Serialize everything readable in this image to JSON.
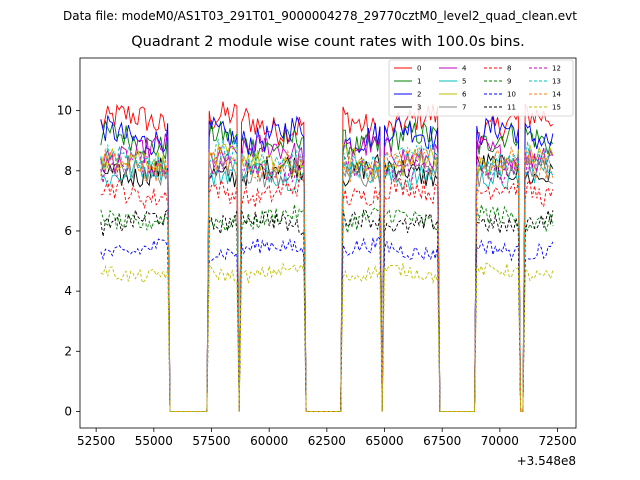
{
  "header": {
    "data_file": "Data file: modeM0/AS1T03_291T01_9000004278_29770cztM0_level2_quad_clean.evt"
  },
  "chart_data": {
    "type": "line",
    "title": "Quadrant 2 module wise count rates with 100.0s bins.",
    "xlabel": "",
    "ylabel": "",
    "x_offset_label": "+3.548e8",
    "xlim": [
      51800,
      73300
    ],
    "ylim": [
      -0.55,
      11.75
    ],
    "xticks": [
      52500,
      55000,
      57500,
      60000,
      62500,
      65000,
      67500,
      70000,
      72500
    ],
    "xtick_labels": [
      "52500",
      "55000",
      "57500",
      "60000",
      "62500",
      "65000",
      "67500",
      "70000",
      "72500"
    ],
    "yticks": [
      0,
      2,
      4,
      6,
      8,
      10
    ],
    "ytick_labels": [
      "0",
      "2",
      "4",
      "6",
      "8",
      "10"
    ],
    "time_range": [
      52700,
      72300
    ],
    "bin_size": 100,
    "on_intervals": [
      [
        52700,
        55600
      ],
      [
        57400,
        58600
      ],
      [
        58800,
        61500
      ],
      [
        63200,
        64800
      ],
      [
        65000,
        67300
      ],
      [
        69000,
        70800
      ],
      [
        71100,
        71800
      ],
      [
        71900,
        72300
      ]
    ],
    "legend_position": "top-right",
    "series": [
      {
        "name": "0",
        "color": "#ff0000",
        "dash": "solid",
        "level": 9.6
      },
      {
        "name": "1",
        "color": "#008000",
        "dash": "solid",
        "level": 9.0
      },
      {
        "name": "2",
        "color": "#0000ff",
        "dash": "solid",
        "level": 9.2
      },
      {
        "name": "3",
        "color": "#000000",
        "dash": "solid",
        "level": 8.0
      },
      {
        "name": "4",
        "color": "#bf00bf",
        "dash": "solid",
        "level": 8.6
      },
      {
        "name": "5",
        "color": "#00bfbf",
        "dash": "solid",
        "level": 7.9
      },
      {
        "name": "6",
        "color": "#bfbf00",
        "dash": "solid",
        "level": 8.3
      },
      {
        "name": "7",
        "color": "#808080",
        "dash": "solid",
        "level": 8.0
      },
      {
        "name": "8",
        "color": "#ff0000",
        "dash": "dashed",
        "level": 7.3
      },
      {
        "name": "9",
        "color": "#008000",
        "dash": "dashed",
        "level": 6.4
      },
      {
        "name": "10",
        "color": "#0000ff",
        "dash": "dashed",
        "level": 5.4
      },
      {
        "name": "11",
        "color": "#000000",
        "dash": "dashed",
        "level": 6.3
      },
      {
        "name": "12",
        "color": "#bf00bf",
        "dash": "dashed",
        "level": 8.1
      },
      {
        "name": "13",
        "color": "#00bfbf",
        "dash": "dashed",
        "level": 8.4
      },
      {
        "name": "14",
        "color": "#ff7f0e",
        "dash": "dashed",
        "level": 8.2
      },
      {
        "name": "15",
        "color": "#bfbf00",
        "dash": "dashed",
        "level": 4.6
      }
    ]
  }
}
